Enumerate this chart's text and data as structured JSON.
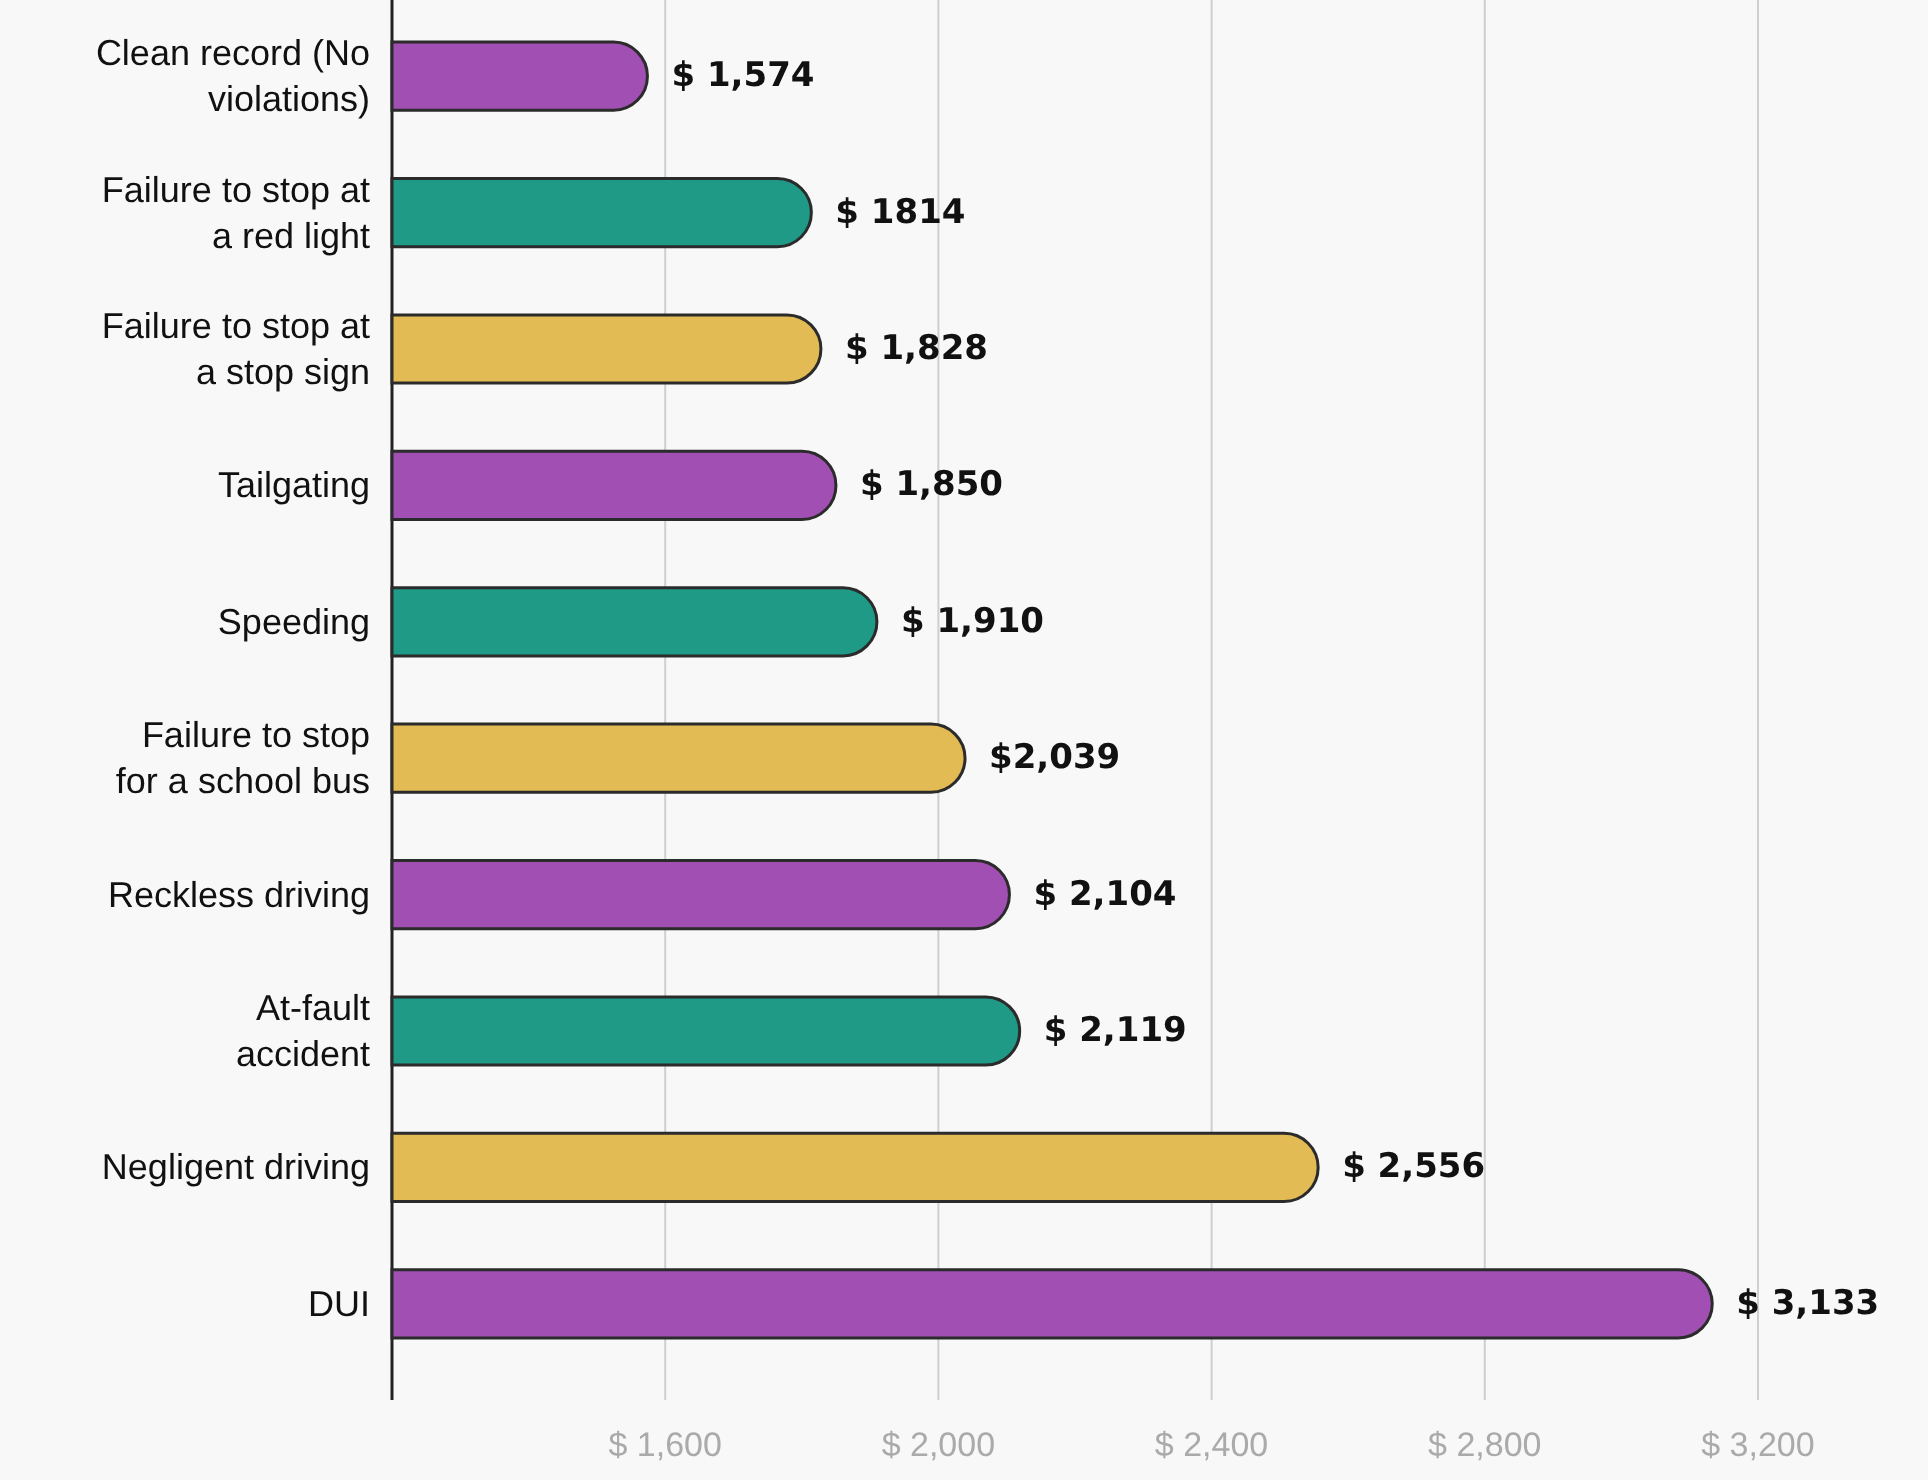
{
  "chart_data": {
    "type": "bar",
    "orientation": "horizontal",
    "categories": [
      "Clean record (No\nviolations)",
      "Failure to stop at\na red light",
      "Failure to stop at\na stop sign",
      "Tailgating",
      "Speeding",
      "Failure to stop\nfor a school bus",
      "Reckless driving",
      "At-fault\naccident",
      "Negligent driving",
      "DUI"
    ],
    "values": [
      1574,
      1814,
      1828,
      1850,
      1910,
      2039,
      2104,
      2119,
      2556,
      3133
    ],
    "colors": [
      "#a14fb3",
      "#1e9a87",
      "#e2bb55",
      "#a14fb3",
      "#1e9a87",
      "#e2bb55",
      "#a14fb3",
      "#1e9a87",
      "#e2bb55",
      "#a14fb3"
    ],
    "value_labels": [
      "$ 1,574",
      "$ 1814",
      "$ 1,828",
      "$ 1,850",
      "$ 1,910",
      "$2,039",
      "$ 2,104",
      "$ 2,119",
      "$ 2,556",
      "$ 3,133"
    ],
    "xlim": [
      1200,
      3200
    ],
    "xticks": [
      {
        "value": 1600,
        "label": "$ 1,600"
      },
      {
        "value": 2000,
        "label": "$ 2,000"
      },
      {
        "value": 2400,
        "label": "$ 2,400"
      },
      {
        "value": 2800,
        "label": "$ 2,800"
      },
      {
        "value": 3200,
        "label": "$ 3,200"
      }
    ],
    "grid": "x"
  }
}
